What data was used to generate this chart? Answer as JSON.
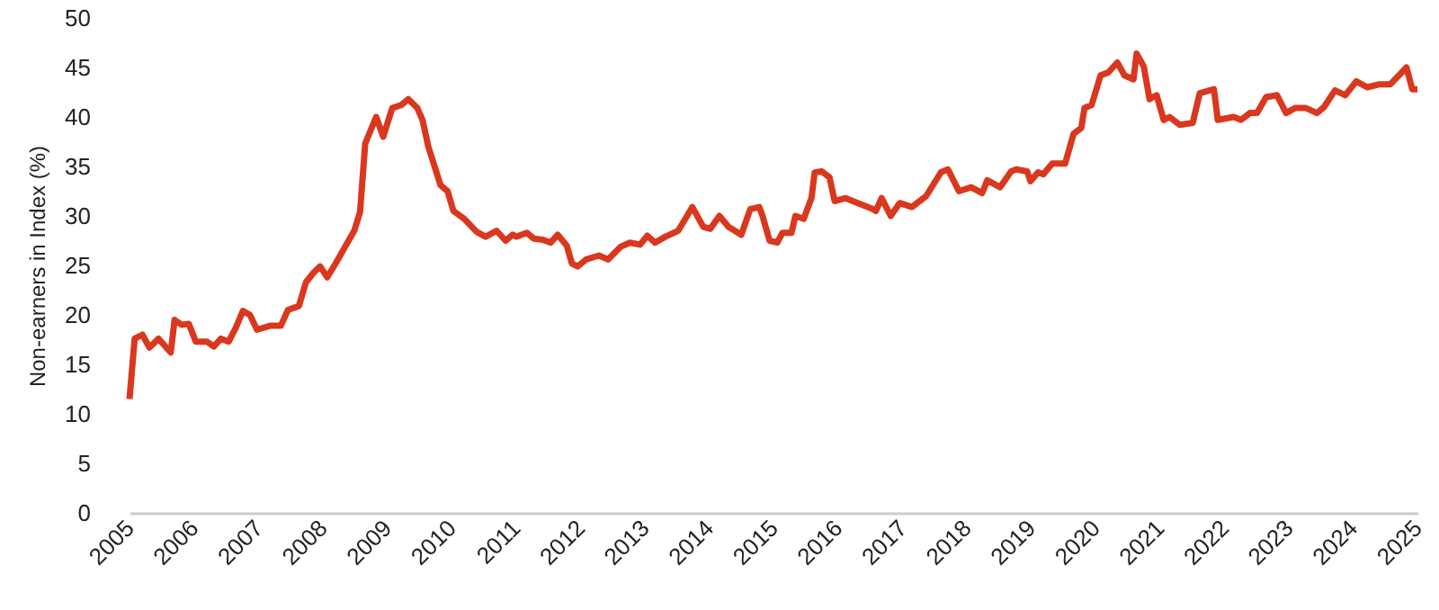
{
  "chart_data": {
    "type": "line",
    "ylabel": "Non-earners in Index (%)",
    "x": [
      2005.0,
      2005.08,
      2005.2,
      2005.31,
      2005.45,
      2005.64,
      2005.7,
      2005.81,
      2005.92,
      2006.03,
      2006.2,
      2006.31,
      2006.42,
      2006.54,
      2006.65,
      2006.76,
      2006.87,
      2006.98,
      2007.18,
      2007.35,
      2007.46,
      2007.63,
      2007.74,
      2007.85,
      2007.96,
      2008.07,
      2008.21,
      2008.35,
      2008.49,
      2008.58,
      2008.66,
      2008.83,
      2008.94,
      2009.08,
      2009.22,
      2009.33,
      2009.47,
      2009.55,
      2009.64,
      2009.83,
      2009.94,
      2010.03,
      2010.2,
      2010.39,
      2010.53,
      2010.7,
      2010.84,
      2010.95,
      2011.01,
      2011.17,
      2011.28,
      2011.42,
      2011.54,
      2011.65,
      2011.79,
      2011.87,
      2011.96,
      2012.09,
      2012.29,
      2012.43,
      2012.63,
      2012.77,
      2012.93,
      2013.04,
      2013.16,
      2013.32,
      2013.52,
      2013.74,
      2013.91,
      2014.02,
      2014.16,
      2014.3,
      2014.5,
      2014.64,
      2014.78,
      2014.83,
      2014.94,
      2015.06,
      2015.14,
      2015.28,
      2015.34,
      2015.47,
      2015.59,
      2015.64,
      2015.75,
      2015.87,
      2015.95,
      2016.12,
      2016.31,
      2016.54,
      2016.59,
      2016.68,
      2016.82,
      2016.96,
      2017.15,
      2017.37,
      2017.6,
      2017.71,
      2017.88,
      2018.07,
      2018.24,
      2018.32,
      2018.52,
      2018.69,
      2018.77,
      2018.94,
      2018.99,
      2019.11,
      2019.19,
      2019.33,
      2019.53,
      2019.66,
      2019.78,
      2019.83,
      2019.94,
      2020.08,
      2020.2,
      2020.34,
      2020.45,
      2020.59,
      2020.64,
      2020.75,
      2020.84,
      2020.95,
      2021.06,
      2021.15,
      2021.31,
      2021.51,
      2021.62,
      2021.84,
      2021.9,
      2022.15,
      2022.26,
      2022.4,
      2022.51,
      2022.65,
      2022.82,
      2022.96,
      2023.1,
      2023.27,
      2023.44,
      2023.55,
      2023.72,
      2023.88,
      2024.05,
      2024.22,
      2024.41,
      2024.58,
      2024.83,
      2024.92,
      2025.0
    ],
    "series": [
      {
        "color": "#d9381e",
        "values": [
          11.5,
          17.6,
          18,
          16.7,
          17.6,
          16.2,
          19.5,
          19,
          19.1,
          17.3,
          17.3,
          16.8,
          17.6,
          17.3,
          18.7,
          20.4,
          20,
          18.5,
          18.9,
          18.9,
          20.5,
          20.9,
          23.3,
          24.2,
          24.9,
          23.8,
          25.3,
          26.9,
          28.5,
          30.4,
          37.3,
          40,
          38,
          40.9,
          41.2,
          41.8,
          40.9,
          39.7,
          37,
          33.1,
          32.5,
          30.5,
          29.7,
          28.4,
          27.9,
          28.5,
          27.5,
          28.1,
          27.9,
          28.3,
          27.7,
          27.6,
          27.3,
          28.1,
          27,
          25.2,
          24.9,
          25.6,
          26,
          25.6,
          26.9,
          27.3,
          27.1,
          28,
          27.3,
          27.9,
          28.5,
          30.9,
          28.9,
          28.7,
          30,
          28.9,
          28.1,
          30.7,
          30.9,
          30,
          27.5,
          27.3,
          28.3,
          28.3,
          30,
          29.7,
          31.8,
          34.4,
          34.5,
          33.9,
          31.5,
          31.8,
          31.3,
          30.7,
          30.5,
          31.8,
          30,
          31.3,
          30.9,
          32,
          34.4,
          34.7,
          32.5,
          32.9,
          32.3,
          33.6,
          32.9,
          34.5,
          34.7,
          34.5,
          33.5,
          34.4,
          34.2,
          35.3,
          35.3,
          38.3,
          38.9,
          40.9,
          41.2,
          44.2,
          44.5,
          45.5,
          44.2,
          43.8,
          46.4,
          45.1,
          41.8,
          42.2,
          39.7,
          40,
          39.2,
          39.4,
          42.4,
          42.8,
          39.7,
          40,
          39.7,
          40.4,
          40.4,
          42,
          42.2,
          40.4,
          40.9,
          40.9,
          40.4,
          41,
          42.7,
          42.2,
          43.6,
          43,
          43.3,
          43.3,
          45,
          42.8,
          42.8
        ]
      }
    ],
    "xlim": [
      2005,
      2025
    ],
    "xticks": [
      2005,
      2006,
      2007,
      2008,
      2009,
      2010,
      2011,
      2012,
      2013,
      2014,
      2015,
      2016,
      2017,
      2018,
      2019,
      2020,
      2021,
      2022,
      2023,
      2024,
      2025
    ],
    "ylim": [
      0,
      50
    ],
    "yticks": [
      0,
      5,
      10,
      15,
      20,
      25,
      30,
      35,
      40,
      45,
      50
    ],
    "grid": false
  }
}
